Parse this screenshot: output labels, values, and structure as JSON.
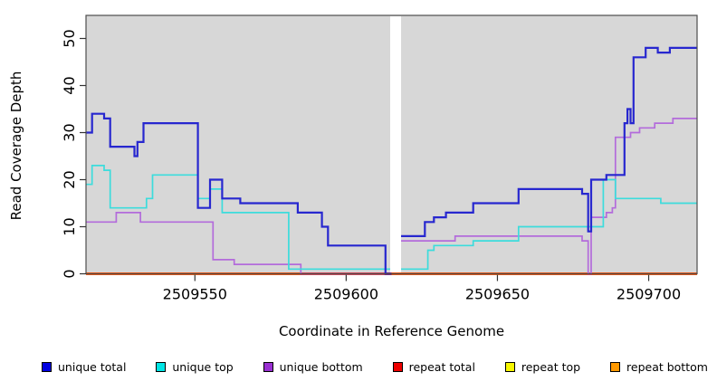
{
  "figure": {
    "x_axis_title": "Coordinate in Reference Genome",
    "y_axis_title": "Read Coverage Depth"
  },
  "legend": [
    {
      "label": "unique total",
      "color": "#0000e1"
    },
    {
      "label": "unique top",
      "color": "#00e5e5"
    },
    {
      "label": "unique bottom",
      "color": "#9a30d2"
    },
    {
      "label": "repeat total",
      "color": "#ee0000"
    },
    {
      "label": "repeat top",
      "color": "#f7f700"
    },
    {
      "label": "repeat bottom",
      "color": "#ff9900"
    }
  ],
  "chart_data": {
    "type": "line",
    "subtype": "step-coverage-plot",
    "title": "",
    "xlabel": "Coordinate in Reference Genome",
    "ylabel": "Read Coverage Depth",
    "x_range": [
      2509514,
      2509716
    ],
    "ylim": [
      0,
      50
    ],
    "x_ticks": [
      2509550,
      2509600,
      2509650,
      2509700
    ],
    "y_ticks": [
      0,
      10,
      20,
      30,
      40,
      50
    ],
    "grid": false,
    "plot_background": "#d7d7d7",
    "data_gap": [
      2509615,
      2509618
    ],
    "legend_position": "bottom",
    "series": [
      {
        "name": "repeat total",
        "color": "#e32222",
        "width": 3,
        "segments": [
          {
            "points": [
              [
                2509514,
                0
              ]
            ],
            "end": 2509716
          }
        ]
      },
      {
        "name": "repeat top",
        "color": "#f2f200",
        "width": 1.6,
        "segments": [
          {
            "points": [
              [
                2509514,
                0
              ]
            ],
            "end": 2509716
          }
        ]
      },
      {
        "name": "repeat bottom",
        "color": "#ff9900",
        "width": 1.9,
        "segments": [
          {
            "points": [
              [
                2509514,
                0
              ]
            ],
            "end": 2509716
          }
        ]
      },
      {
        "name": "unique bottom",
        "color": "#b36bdb",
        "width": 1.7,
        "segments": [
          {
            "points": [
              [
                2509514,
                11
              ],
              [
                2509524,
                13
              ],
              [
                2509532,
                11
              ],
              [
                2509556,
                3
              ],
              [
                2509563,
                2
              ],
              [
                2509585,
                0
              ]
            ],
            "end": 2509615
          },
          {
            "points": [
              [
                2509618,
                7
              ],
              [
                2509636,
                8
              ],
              [
                2509678,
                7
              ],
              [
                2509680,
                0
              ],
              [
                2509681,
                12
              ],
              [
                2509686,
                13
              ],
              [
                2509688,
                14
              ],
              [
                2509689,
                29
              ],
              [
                2509694,
                30
              ],
              [
                2509697,
                31
              ],
              [
                2509702,
                32
              ],
              [
                2509708,
                33
              ]
            ],
            "end": 2509716
          }
        ]
      },
      {
        "name": "unique top",
        "color": "#3cdcdc",
        "width": 1.7,
        "segments": [
          {
            "points": [
              [
                2509514,
                19
              ],
              [
                2509516,
                23
              ],
              [
                2509520,
                22
              ],
              [
                2509522,
                14
              ],
              [
                2509534,
                16
              ],
              [
                2509536,
                21
              ],
              [
                2509551,
                16
              ],
              [
                2509555,
                18
              ],
              [
                2509559,
                13
              ],
              [
                2509581,
                1
              ]
            ],
            "end": 2509615
          },
          {
            "points": [
              [
                2509618,
                1
              ],
              [
                2509627,
                5
              ],
              [
                2509629,
                6
              ],
              [
                2509642,
                7
              ],
              [
                2509657,
                10
              ],
              [
                2509685,
                20
              ],
              [
                2509689,
                16
              ],
              [
                2509704,
                15
              ]
            ],
            "end": 2509716
          }
        ]
      },
      {
        "name": "unique total",
        "color": "#2727cf",
        "width": 2.2,
        "segments": [
          {
            "points": [
              [
                2509514,
                30
              ],
              [
                2509516,
                34
              ],
              [
                2509520,
                33
              ],
              [
                2509522,
                27
              ],
              [
                2509530,
                25
              ],
              [
                2509531,
                28
              ],
              [
                2509533,
                32
              ],
              [
                2509551,
                14
              ],
              [
                2509555,
                20
              ],
              [
                2509559,
                16
              ],
              [
                2509565,
                15
              ],
              [
                2509584,
                13
              ],
              [
                2509592,
                10
              ],
              [
                2509594,
                6
              ],
              [
                2509613,
                0
              ]
            ],
            "end": 2509615
          },
          {
            "points": [
              [
                2509618,
                8
              ],
              [
                2509626,
                11
              ],
              [
                2509629,
                12
              ],
              [
                2509633,
                13
              ],
              [
                2509642,
                15
              ],
              [
                2509657,
                18
              ],
              [
                2509678,
                17
              ],
              [
                2509680,
                9
              ],
              [
                2509681,
                20
              ],
              [
                2509686,
                21
              ],
              [
                2509692,
                32
              ],
              [
                2509693,
                35
              ],
              [
                2509694,
                32
              ],
              [
                2509695,
                46
              ],
              [
                2509699,
                48
              ],
              [
                2509703,
                47
              ],
              [
                2509707,
                48
              ]
            ],
            "end": 2509716
          }
        ]
      }
    ]
  }
}
